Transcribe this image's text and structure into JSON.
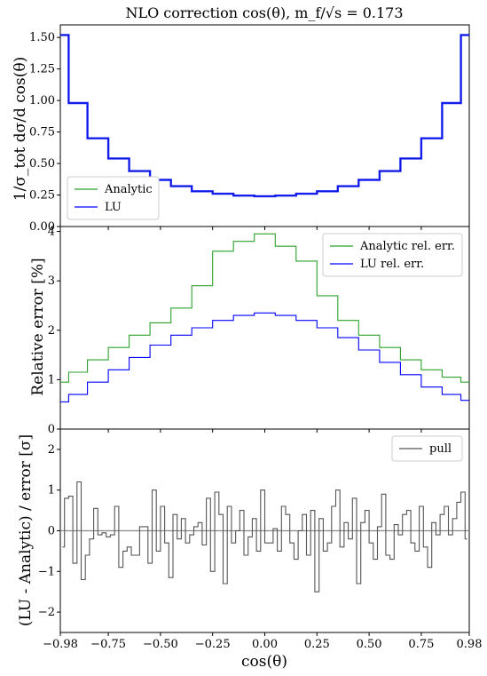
{
  "chart_data": [
    {
      "type": "line",
      "title": "NLO correction cos(θ), m_f/√s = 0.173",
      "ylabel": "1/σ_tot dσ/d cos(θ)",
      "xlim": [
        -0.98,
        0.98
      ],
      "ylim": [
        0.0,
        1.6
      ],
      "xticks": [
        "−0.98",
        "−0.75",
        "−0.50",
        "−0.25",
        "0.00",
        "0.25",
        "0.50",
        "0.75",
        "0.98"
      ],
      "yticks": [
        "0.00",
        "0.25",
        "0.50",
        "0.75",
        "1.00",
        "1.25",
        "1.50"
      ],
      "legend_position": "lower-left",
      "x": [
        -0.98,
        -0.9,
        -0.8,
        -0.7,
        -0.6,
        -0.5,
        -0.4,
        -0.3,
        -0.2,
        -0.1,
        0.0,
        0.1,
        0.2,
        0.3,
        0.4,
        0.5,
        0.6,
        0.7,
        0.8,
        0.9,
        0.98
      ],
      "series": [
        {
          "name": "Analytic",
          "color": "#2ca02c",
          "values": [
            1.52,
            0.98,
            0.7,
            0.54,
            0.44,
            0.37,
            0.32,
            0.28,
            0.26,
            0.245,
            0.24,
            0.245,
            0.26,
            0.28,
            0.32,
            0.37,
            0.44,
            0.54,
            0.7,
            0.98,
            1.52
          ]
        },
        {
          "name": "LU",
          "color": "#0000ff",
          "values": [
            1.52,
            0.98,
            0.7,
            0.54,
            0.44,
            0.37,
            0.32,
            0.28,
            0.26,
            0.245,
            0.24,
            0.245,
            0.26,
            0.28,
            0.32,
            0.37,
            0.44,
            0.54,
            0.7,
            0.98,
            1.52
          ]
        }
      ]
    },
    {
      "type": "line",
      "ylabel": "Relative error [%]",
      "xlim": [
        -0.98,
        0.98
      ],
      "ylim": [
        0,
        4.1
      ],
      "yticks": [
        "0",
        "1",
        "2",
        "3",
        "4"
      ],
      "legend_position": "top-right",
      "x": [
        -0.98,
        -0.9,
        -0.8,
        -0.7,
        -0.6,
        -0.5,
        -0.4,
        -0.3,
        -0.2,
        -0.1,
        0.0,
        0.1,
        0.2,
        0.3,
        0.4,
        0.5,
        0.6,
        0.7,
        0.8,
        0.9,
        0.98
      ],
      "series": [
        {
          "name": "Analytic rel. err.",
          "color": "#2ca02c",
          "values": [
            0.95,
            1.15,
            1.4,
            1.65,
            1.9,
            2.15,
            2.45,
            2.9,
            3.6,
            3.8,
            3.95,
            3.7,
            3.4,
            2.7,
            2.2,
            1.9,
            1.65,
            1.4,
            1.2,
            1.05,
            0.95
          ]
        },
        {
          "name": "LU rel. err.",
          "color": "#0000ff",
          "values": [
            0.55,
            0.7,
            0.95,
            1.2,
            1.45,
            1.7,
            1.9,
            2.05,
            2.2,
            2.3,
            2.35,
            2.3,
            2.2,
            2.05,
            1.85,
            1.6,
            1.35,
            1.1,
            0.85,
            0.7,
            0.58
          ]
        }
      ]
    },
    {
      "type": "line",
      "ylabel": "(LU - Analytic) / error [σ]",
      "xlabel": "cos(θ)",
      "xlim": [
        -0.98,
        0.98
      ],
      "ylim": [
        -2.5,
        2.5
      ],
      "yticks": [
        "−2",
        "−1",
        "0",
        "1",
        "2"
      ],
      "legend_position": "top-right",
      "series": [
        {
          "name": "pull",
          "color": "#555555",
          "values": [
            -0.4,
            0.8,
            0.85,
            -0.8,
            1.2,
            -1.2,
            -0.6,
            -0.2,
            0.55,
            -0.1,
            -0.05,
            -0.15,
            -0.1,
            0.6,
            -0.9,
            -0.5,
            -0.4,
            -0.6,
            -0.6,
            0.1,
            0.1,
            -0.8,
            1.0,
            -0.5,
            0.6,
            -0.3,
            -1.15,
            0.4,
            -0.2,
            0.3,
            -0.3,
            -0.1,
            0.1,
            0.2,
            -0.35,
            0.8,
            -1.0,
            0.95,
            0.4,
            -1.3,
            0.6,
            -0.3,
            0.0,
            0.5,
            -0.6,
            -0.15,
            0.3,
            -0.5,
            1.0,
            -0.3,
            -0.3,
            0.05,
            -0.5,
            0.6,
            0.4,
            -0.3,
            -0.7,
            0.0,
            0.4,
            -0.6,
            0.5,
            -1.5,
            0.3,
            -0.5,
            -0.3,
            0.6,
            1.0,
            -0.4,
            0.2,
            -0.2,
            0.8,
            -1.3,
            0.2,
            0.5,
            -0.3,
            -0.7,
            0.1,
            0.9,
            -0.6,
            -0.7,
            0.15,
            -0.1,
            0.4,
            0.5,
            -0.3,
            -0.5,
            0.6,
            -0.4,
            -0.9,
            0.2,
            -0.1,
            0.4,
            0.6,
            -0.1,
            0.3,
            0.7,
            0.95,
            -0.2
          ]
        }
      ],
      "reference_line": 0
    }
  ]
}
